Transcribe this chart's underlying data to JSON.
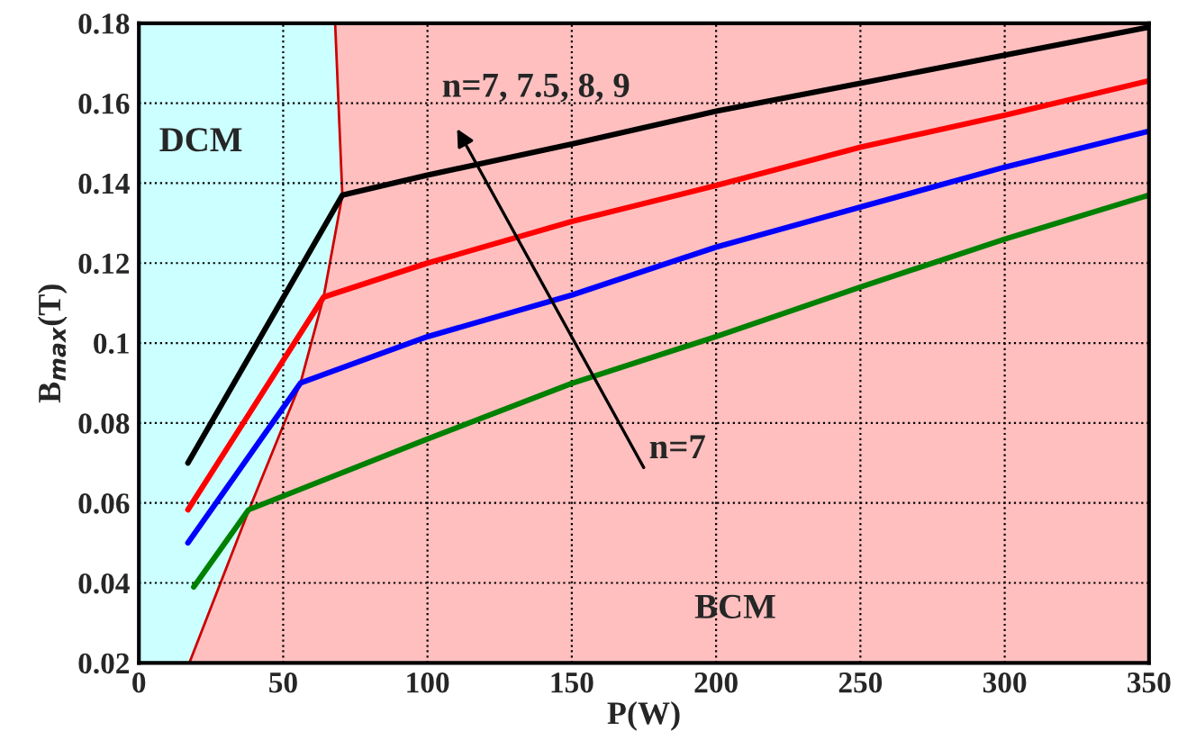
{
  "chart_data": {
    "type": "line",
    "xlabel": "P(W)",
    "ylabel": "B$_{max}$(T)",
    "xlim": [
      0,
      350
    ],
    "ylim": [
      0.02,
      0.18
    ],
    "xticks": [
      0,
      50,
      100,
      150,
      200,
      250,
      300,
      350
    ],
    "yticks": [
      0.02,
      0.04,
      0.06,
      0.08,
      0.1,
      0.12,
      0.14,
      0.16,
      0.18
    ],
    "grid": true,
    "annotations": [
      "BCM",
      "n=7, 7.5, 8, 9",
      "n=7"
    ],
    "bands": [
      {
        "axis": "x",
        "from": 0,
        "to": 70.5,
        "color": "#ccffff",
        "label": "DCM"
      }
    ],
    "series": [
      {
        "type": "line",
        "color": "#cc0000",
        "x": [
          17.5,
          38,
          56,
          64,
          70.5,
          68
        ],
        "values": [
          0.02,
          0.058,
          0.09,
          0.1115,
          0.137,
          0.18
        ]
      },
      {
        "color": "#000000",
        "x": [
          17,
          70.5,
          100,
          150,
          200,
          250,
          300,
          350
        ],
        "values": [
          0.07,
          0.137,
          0.142,
          0.1498,
          0.158,
          0.165,
          0.172,
          0.179
        ]
      },
      {
        "color": "#ff0000",
        "x": [
          17,
          64,
          100,
          150,
          200,
          250,
          300,
          350
        ],
        "values": [
          0.0583,
          0.1115,
          0.12,
          0.1304,
          0.1394,
          0.149,
          0.157,
          0.1656
        ]
      },
      {
        "color": "#0000ff",
        "x": [
          17,
          56,
          100,
          150,
          200,
          250,
          300,
          350
        ],
        "values": [
          0.05,
          0.09,
          0.1016,
          0.112,
          0.124,
          0.134,
          0.144,
          0.153
        ]
      },
      {
        "color": "#008000",
        "x": [
          19,
          38,
          100,
          150,
          200,
          250,
          300,
          350
        ],
        "values": [
          0.039,
          0.0583,
          0.076,
          0.0899,
          0.1016,
          0.114,
          0.126,
          0.137
        ]
      }
    ]
  }
}
